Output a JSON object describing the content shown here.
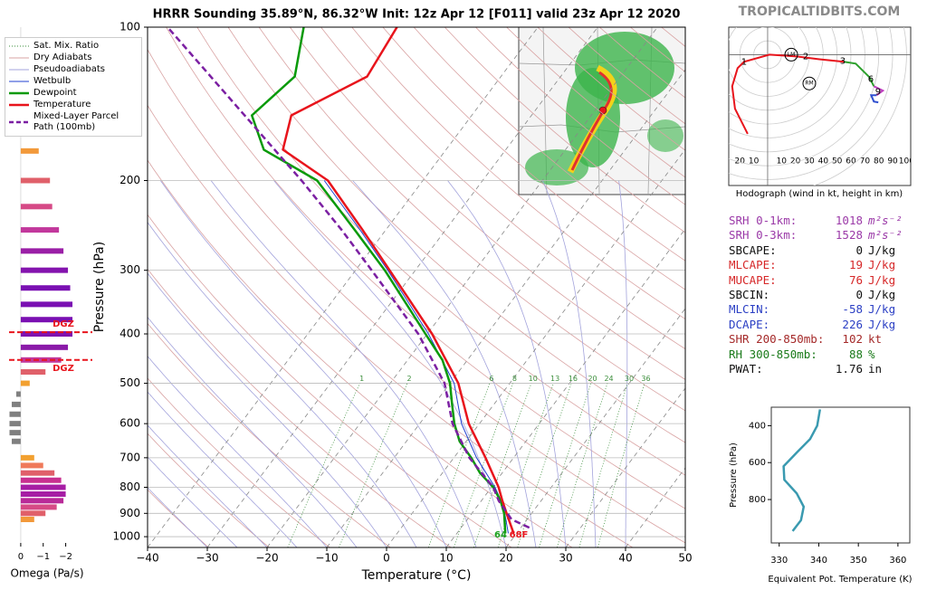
{
  "title": "HRRR Sounding 35.89°N, 86.32°W Init: 12z Apr 12 [F011] valid 23z Apr 12 2020",
  "watermark": "TROPICALTIDBITS.COM",
  "stats": [
    {
      "label": "SRH 0-1km:",
      "value": 1018,
      "unit": "m²s⁻²",
      "color": "#9b3aa8"
    },
    {
      "label": "SRH 0-3km:",
      "value": 1528,
      "unit": "m²s⁻²",
      "color": "#9b3aa8"
    },
    {
      "label": "SBCAPE:",
      "value": 0,
      "unit": "J/kg",
      "color": "#111111"
    },
    {
      "label": "MLCAPE:",
      "value": 19,
      "unit": "J/kg",
      "color": "#d62728"
    },
    {
      "label": "MUCAPE:",
      "value": 76,
      "unit": "J/kg",
      "color": "#d62728"
    },
    {
      "label": "SBCIN:",
      "value": 0,
      "unit": "J/kg",
      "color": "#111111"
    },
    {
      "label": "MLCIN:",
      "value": -58,
      "unit": "J/kg",
      "color": "#2b3fc4"
    },
    {
      "label": "DCAPE:",
      "value": 226,
      "unit": "J/kg",
      "color": "#2b3fc4"
    },
    {
      "label": "SHR 200-850mb:",
      "value": 102,
      "unit": "kt",
      "color": "#a52a2a"
    },
    {
      "label": "RH 300-850mb:",
      "value": 88,
      "unit": "%",
      "color": "#1a7a1a"
    },
    {
      "label": "PWAT:",
      "value": 1.76,
      "unit": "in",
      "color": "#111111"
    }
  ],
  "chart_data": [
    {
      "type": "skewt",
      "xlabel": "Temperature (°C)",
      "ylabel": "Pressure (hPa)",
      "xlim": [
        -40,
        50
      ],
      "ylim": [
        1050,
        100
      ],
      "log_y": true,
      "xticks": [
        {
          "value": -40,
          "label": "−40"
        },
        {
          "value": -30,
          "label": "−30"
        },
        {
          "value": -20,
          "label": "−20"
        },
        {
          "value": -10,
          "label": "−10"
        },
        0,
        10,
        20,
        30,
        40,
        50
      ],
      "yticks": [
        100,
        200,
        300,
        400,
        500,
        600,
        700,
        800,
        900,
        1000
      ],
      "reference_lines": [
        {
          "name": "Sat. Mix. Ratio",
          "color": "#3d8f3d"
        },
        {
          "name": "Dry Adiabats",
          "color": "#d9a3a3"
        },
        {
          "name": "Pseudoadiabats",
          "color": "#a3a3dc"
        }
      ],
      "mixing_ratios": [
        1,
        2,
        6,
        8,
        10,
        13,
        16,
        20,
        24,
        30,
        36
      ],
      "series": [
        {
          "name": "Wetbulb",
          "color": "#2040d0",
          "width": 1,
          "pressure": [
            985,
            900,
            850,
            800,
            700,
            600,
            500,
            400,
            300,
            250,
            200
          ],
          "values": [
            18.6,
            15.5,
            13.3,
            10.6,
            3.8,
            -3,
            -9.3,
            -19.8,
            -34.6,
            -44.3,
            -56.5
          ]
        },
        {
          "name": "Dewpoint",
          "color": "#0a9a0a",
          "width": 2.5,
          "pressure": [
            985,
            900,
            850,
            800,
            750,
            700,
            650,
            600,
            550,
            500,
            450,
            400,
            300,
            250,
            200,
            174,
            149,
            125,
            100
          ],
          "values": [
            18.1,
            15.4,
            13.2,
            10.3,
            6.3,
            2.9,
            -1.1,
            -4.2,
            -7,
            -10,
            -14.2,
            -20.3,
            -35.1,
            -45.2,
            -57.7,
            -70.5,
            -76.8,
            -74.5,
            -79.2
          ]
        },
        {
          "name": "Temperature",
          "color": "#e8141c",
          "width": 2.5,
          "pressure": [
            985,
            900,
            850,
            800,
            700,
            600,
            500,
            400,
            300,
            250,
            200,
            174,
            149,
            125,
            100
          ],
          "values": [
            19.5,
            15.8,
            13.5,
            11.2,
            5.3,
            -1.8,
            -8.6,
            -19.2,
            -34.3,
            -43.9,
            -55.9,
            -67.3,
            -70.2,
            -62.4,
            -63.6
          ]
        },
        {
          "name": "Mixed-Layer Parcel Path (100mb)",
          "color": "#7b1fa2",
          "width": 2.5,
          "dash": true,
          "pressure": [
            960,
            925,
            850,
            800,
            700,
            600,
            500,
            400,
            300,
            250,
            200,
            150,
            100
          ],
          "values": [
            21.4,
            17.4,
            12.9,
            10.3,
            2.6,
            -4.5,
            -10.9,
            -21.5,
            -37.3,
            -47.4,
            -60.3,
            -77.6,
            -102
          ]
        }
      ],
      "surface_labels": [
        {
          "text": "64",
          "color": "#1aa01a"
        },
        {
          "text": "68F",
          "color": "#e8141c"
        }
      ]
    },
    {
      "type": "hbar",
      "xlabel": "Omega (Pa/s)",
      "xlim": [
        0.6,
        -2.5
      ],
      "ylim": [
        1050,
        100
      ],
      "xticks": [
        0,
        {
          "value": -1,
          "label": "−1"
        },
        {
          "value": -2,
          "label": "−2"
        }
      ],
      "pressure": [
        175,
        200,
        225,
        250,
        275,
        300,
        325,
        350,
        375,
        400,
        425,
        450,
        475,
        500,
        525,
        550,
        575,
        600,
        625,
        650,
        700,
        725,
        750,
        775,
        800,
        825,
        850,
        875,
        900,
        925
      ],
      "values": [
        -0.8,
        -1.3,
        -1.4,
        -1.7,
        -1.9,
        -2.1,
        -2.2,
        -2.3,
        -2.3,
        -2.3,
        -2.1,
        -1.8,
        -1.1,
        -0.4,
        0.2,
        0.4,
        0.5,
        0.5,
        0.5,
        0.4,
        -0.6,
        -1.0,
        -1.5,
        -1.8,
        -2.0,
        -2.0,
        -1.9,
        -1.6,
        -1.1,
        -0.6
      ],
      "colors": [
        "#f2993a",
        "#e0606a",
        "#d64a86",
        "#c2389c",
        "#9a1fa6",
        "#8414ae",
        "#7a10b2",
        "#7a10b2",
        "#7a10b2",
        "#8014b0",
        "#8a1aa8",
        "#c2389c",
        "#e0606a",
        "#f2a030",
        "#808080",
        "#808080",
        "#808080",
        "#808080",
        "#808080",
        "#808080",
        "#f2a030",
        "#ef7a5a",
        "#e0606a",
        "#c8308f",
        "#a61ea4",
        "#a61ea4",
        "#b82a98",
        "#d64a86",
        "#e0606a",
        "#f2993a"
      ],
      "dgz": {
        "label": "DGZ",
        "pressure": [
          397,
          450
        ],
        "color": "#e8141c"
      }
    },
    {
      "type": "hodograph",
      "xlabel": "Hodograph (wind in kt, height in km)",
      "xlim": [
        -28,
        103
      ],
      "ylim": [
        -95,
        20
      ],
      "rings": [
        {
          "value": -20,
          "label": "20"
        },
        {
          "value": -10,
          "label": "10"
        },
        10,
        20,
        30,
        40,
        50,
        60,
        70,
        80,
        90,
        100
      ],
      "series": [
        {
          "color": "#e8141c",
          "u": [
            -14.4,
            -23.5,
            -25.5,
            -21.6,
            -17,
            1.3,
            20.9,
            37.3,
            54.9
          ],
          "v": [
            -57.5,
            -39.2,
            -22.9,
            -9.8,
            -5.2,
            0,
            -1.3,
            -3.3,
            -5.2
          ]
        },
        {
          "color": "#2ca02c",
          "u": [
            54.9,
            63.4,
            73.2,
            76.5
          ],
          "v": [
            -5.2,
            -6.5,
            -16.3,
            -22.9
          ]
        },
        {
          "color": "#c040c0",
          "u": [
            76.5,
            83,
            78.4
          ],
          "v": [
            -22.9,
            -26.1,
            -29.4
          ]
        },
        {
          "color": "#3050d0",
          "u": [
            78.4,
            74.5,
            76.5,
            79.7
          ],
          "v": [
            -29.4,
            -29.4,
            -34,
            -34.6
          ]
        }
      ],
      "heights": [
        1,
        2,
        3,
        6,
        9
      ],
      "height_u": [
        -17,
        27.4,
        54.1,
        74.3,
        79.5
      ],
      "height_v": [
        -5.2,
        -1.3,
        -4.6,
        -17.7,
        -26.9
      ],
      "storm_motion": [
        {
          "label": "LM",
          "u": 17,
          "v": 0
        },
        {
          "label": "RM",
          "u": 30,
          "v": -20.9
        }
      ]
    },
    {
      "type": "line",
      "xlabel": "Equivalent Pot. Temperature (K)",
      "ylabel": "Pressure (hPa)",
      "xlim": [
        328,
        363
      ],
      "ylim": [
        1035,
        300
      ],
      "xticks": [
        330,
        340,
        350,
        360
      ],
      "yticks": [
        400,
        600,
        800
      ],
      "color": "#3a9ab0",
      "x": [
        340.3,
        339.6,
        337.8,
        334.4,
        331.1,
        331.3,
        334.4,
        336.2,
        335.5,
        333.4
      ],
      "y": [
        312,
        400,
        473,
        546,
        620,
        693,
        766,
        839,
        912,
        971
      ]
    }
  ]
}
